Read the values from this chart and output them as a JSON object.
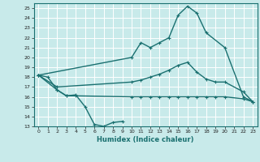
{
  "xlabel": "Humidex (Indice chaleur)",
  "ylabel": "",
  "xlim": [
    -0.5,
    23.5
  ],
  "ylim": [
    13,
    25.5
  ],
  "yticks": [
    13,
    14,
    15,
    16,
    17,
    18,
    19,
    20,
    21,
    22,
    23,
    24,
    25
  ],
  "xticks": [
    0,
    1,
    2,
    3,
    4,
    5,
    6,
    7,
    8,
    9,
    10,
    11,
    12,
    13,
    14,
    15,
    16,
    17,
    18,
    19,
    20,
    21,
    22,
    23
  ],
  "bg_color": "#c8eaea",
  "grid_color": "#b0d8d8",
  "line_color": "#1a7070",
  "line_width": 1.0,
  "marker_size": 2.0,
  "series": [
    {
      "x": [
        0,
        10,
        11,
        12,
        13,
        14,
        15,
        16,
        17,
        18,
        20,
        22,
        23
      ],
      "y": [
        18.2,
        20.0,
        21.5,
        21.0,
        21.5,
        22.0,
        24.3,
        25.2,
        24.5,
        22.5,
        21.0,
        16.0,
        15.5
      ]
    },
    {
      "x": [
        0,
        2,
        10,
        11,
        12,
        13,
        14,
        15,
        16,
        17,
        18,
        19,
        20,
        22,
        23
      ],
      "y": [
        18.2,
        17.0,
        17.5,
        17.7,
        18.0,
        18.3,
        18.7,
        19.2,
        19.5,
        18.5,
        17.8,
        17.5,
        17.5,
        16.5,
        15.5
      ]
    },
    {
      "x": [
        0,
        2,
        3,
        4,
        10,
        11,
        12,
        13,
        14,
        15,
        16,
        17,
        18,
        19,
        20,
        22,
        23
      ],
      "y": [
        18.2,
        16.7,
        16.1,
        16.1,
        16.0,
        16.0,
        16.0,
        16.0,
        16.0,
        16.0,
        16.0,
        16.0,
        16.0,
        16.0,
        16.0,
        15.8,
        15.5
      ]
    },
    {
      "x": [
        0,
        1,
        2,
        3,
        4,
        5,
        6,
        7,
        8,
        9
      ],
      "y": [
        18.2,
        18.0,
        16.7,
        16.1,
        16.2,
        15.0,
        13.2,
        13.0,
        13.4,
        13.5
      ]
    }
  ]
}
